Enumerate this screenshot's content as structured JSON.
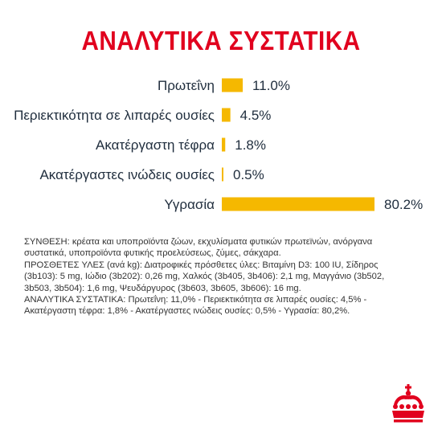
{
  "title": "ΑΝΑΛΥΤΙΚΑ ΣΥΣΤΑΤΙΚΑ",
  "colors": {
    "title": "#e1001e",
    "bar": "#f5b800",
    "text": "#1f2d3d",
    "logo": "#e1001e"
  },
  "chart_data": {
    "type": "bar",
    "orientation": "horizontal",
    "title": "ΑΝΑΛΥΤΙΚΑ ΣΥΣΤΑΤΙΚΑ",
    "categories": [
      "Πρωτεΐνη",
      "Περιεκτικότητα σε λιπαρές ουσίες",
      "Ακατέργαστη τέφρα",
      "Ακατέργαστες ινώδεις ουσίες",
      "Υγρασία"
    ],
    "values": [
      11.0,
      4.5,
      1.8,
      0.5,
      80.2
    ],
    "value_labels": [
      "11.0%",
      "4.5%",
      "1.8%",
      "0.5%",
      "80.2%"
    ],
    "unit": "%",
    "xlim": [
      0,
      80.2
    ],
    "grid": false,
    "legend": "none"
  },
  "composition": {
    "lines": [
      "ΣΥΝΘΕΣΗ: κρέατα και υποπροϊόντα ζώων, εκχυλίσματα φυτικών πρωτεϊνών, ανόργανα",
      "συστατικά, υποπροϊόντα φυτικής προελεύσεως, ζύμες, σάκχαρα.",
      "ΠΡΟΣΘΕΤΕΣ ΥΛΕΣ (ανά kg): Διατροφικές πρόσθετες ύλες: Βιταμίνη D3: 100 IU, Σίδηρος",
      "(3b103): 5 mg, Ιώδιο (3b202): 0,26 mg, Χαλκός (3b405, 3b406): 2,1 mg, Μαγγάνιο (3b502,",
      "3b503, 3b504): 1,6 mg, Ψευδάργυρος (3b603, 3b605, 3b606): 16 mg.",
      "ΑΝΑΛΥΤΙΚΑ ΣΥΣΤΑΤΙΚΑ: Πρωτεΐνη: 11,0% - Περιεκτικότητα σε λιπαρές ουσίες: 4,5% -",
      "Ακατέργαστη τέφρα: 1,8% - Ακατέργαστες ινώδεις ουσίες: 0,5% - Υγρασία: 80,2%."
    ]
  },
  "logo": {
    "icon": "royal-crown-icon"
  }
}
